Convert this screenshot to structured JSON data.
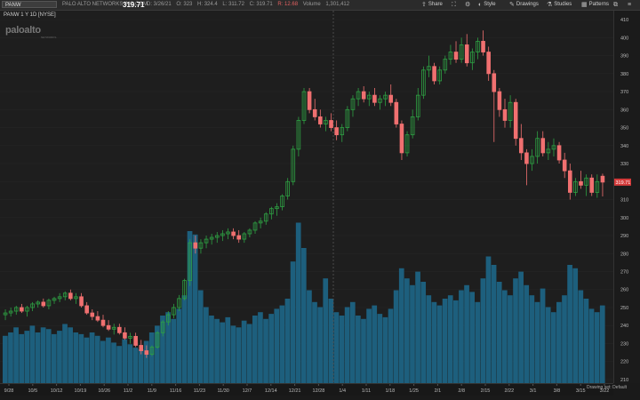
{
  "toolbar": {
    "symbol": "PANW",
    "company": "PALO ALTO NETWORKS INC.COM",
    "date": "D: 3/26/21",
    "open": "O: 323",
    "high": "H: 324.4",
    "low": "L: 311.72",
    "close": "C: 319.71",
    "change": "R: 12.68",
    "volume_label": "Volume",
    "volume": "1,301,412",
    "last_price": "319.71",
    "buttons": [
      "Share",
      "",
      "",
      "Style",
      "Drawings",
      "Studies",
      "Patterns"
    ]
  },
  "chart_title": "PANW 1 Y 1D [NYSE]",
  "logo": {
    "text": "paloalto",
    "sub": "NETWORKS"
  },
  "price_tag": "319.71",
  "footer": "Drawing set: Default",
  "colors": {
    "up": "#2ea043",
    "down": "#f07070",
    "volume": "#1d5f7d",
    "crosshair": "#555555"
  },
  "chart_data": {
    "type": "candlestick",
    "title": "PANW 1 Y 1D [NYSE]",
    "x_ticks": [
      "9/28",
      "10/5",
      "10/12",
      "10/19",
      "10/26",
      "11/2",
      "11/9",
      "11/16",
      "11/23",
      "11/30",
      "12/7",
      "12/14",
      "12/21",
      "12/28",
      "1/4",
      "1/11",
      "1/18",
      "1/25",
      "2/1",
      "2/8",
      "2/15",
      "2/22",
      "3/1",
      "3/8",
      "3/15",
      "3/22"
    ],
    "y_ticks": [
      210,
      220,
      230,
      240,
      250,
      260,
      270,
      280,
      290,
      300,
      310,
      320,
      330,
      340,
      350,
      360,
      370,
      380,
      390,
      400,
      410
    ],
    "ylim": [
      208,
      415
    ],
    "series": [
      {
        "name": "price",
        "values": [
          {
            "o": 246,
            "h": 249,
            "l": 243,
            "c": 247
          },
          {
            "o": 247,
            "h": 250,
            "l": 245,
            "c": 248
          },
          {
            "o": 248,
            "h": 251,
            "l": 246,
            "c": 250
          },
          {
            "o": 250,
            "h": 252,
            "l": 247,
            "c": 248
          },
          {
            "o": 248,
            "h": 251,
            "l": 245,
            "c": 250
          },
          {
            "o": 250,
            "h": 253,
            "l": 248,
            "c": 252
          },
          {
            "o": 252,
            "h": 254,
            "l": 250,
            "c": 253
          },
          {
            "o": 253,
            "h": 255,
            "l": 250,
            "c": 251
          },
          {
            "o": 251,
            "h": 255,
            "l": 249,
            "c": 254
          },
          {
            "o": 254,
            "h": 256,
            "l": 252,
            "c": 255
          },
          {
            "o": 255,
            "h": 258,
            "l": 253,
            "c": 256
          },
          {
            "o": 256,
            "h": 259,
            "l": 254,
            "c": 258
          },
          {
            "o": 258,
            "h": 260,
            "l": 254,
            "c": 255
          },
          {
            "o": 255,
            "h": 258,
            "l": 252,
            "c": 256
          },
          {
            "o": 256,
            "h": 258,
            "l": 250,
            "c": 251
          },
          {
            "o": 251,
            "h": 253,
            "l": 246,
            "c": 247
          },
          {
            "o": 247,
            "h": 249,
            "l": 243,
            "c": 245
          },
          {
            "o": 245,
            "h": 248,
            "l": 242,
            "c": 243
          },
          {
            "o": 243,
            "h": 246,
            "l": 239,
            "c": 240
          },
          {
            "o": 240,
            "h": 243,
            "l": 237,
            "c": 238
          },
          {
            "o": 238,
            "h": 241,
            "l": 235,
            "c": 239
          },
          {
            "o": 239,
            "h": 241,
            "l": 235,
            "c": 236
          },
          {
            "o": 236,
            "h": 239,
            "l": 232,
            "c": 233
          },
          {
            "o": 233,
            "h": 236,
            "l": 230,
            "c": 234
          },
          {
            "o": 234,
            "h": 236,
            "l": 228,
            "c": 229
          },
          {
            "o": 229,
            "h": 232,
            "l": 224,
            "c": 226
          },
          {
            "o": 226,
            "h": 229,
            "l": 222,
            "c": 224
          },
          {
            "o": 224,
            "h": 229,
            "l": 223,
            "c": 228
          },
          {
            "o": 228,
            "h": 237,
            "l": 227,
            "c": 236
          },
          {
            "o": 236,
            "h": 243,
            "l": 234,
            "c": 242
          },
          {
            "o": 242,
            "h": 248,
            "l": 240,
            "c": 246
          },
          {
            "o": 246,
            "h": 252,
            "l": 244,
            "c": 250
          },
          {
            "o": 250,
            "h": 257,
            "l": 248,
            "c": 255
          },
          {
            "o": 255,
            "h": 266,
            "l": 254,
            "c": 265
          },
          {
            "o": 265,
            "h": 288,
            "l": 262,
            "c": 286
          },
          {
            "o": 286,
            "h": 290,
            "l": 280,
            "c": 283
          },
          {
            "o": 283,
            "h": 288,
            "l": 280,
            "c": 286
          },
          {
            "o": 286,
            "h": 290,
            "l": 283,
            "c": 288
          },
          {
            "o": 288,
            "h": 291,
            "l": 285,
            "c": 289
          },
          {
            "o": 289,
            "h": 292,
            "l": 286,
            "c": 290
          },
          {
            "o": 290,
            "h": 293,
            "l": 287,
            "c": 291
          },
          {
            "o": 291,
            "h": 294,
            "l": 288,
            "c": 292
          },
          {
            "o": 292,
            "h": 294,
            "l": 288,
            "c": 290
          },
          {
            "o": 290,
            "h": 293,
            "l": 286,
            "c": 288
          },
          {
            "o": 288,
            "h": 292,
            "l": 286,
            "c": 291
          },
          {
            "o": 291,
            "h": 294,
            "l": 289,
            "c": 293
          },
          {
            "o": 293,
            "h": 298,
            "l": 291,
            "c": 297
          },
          {
            "o": 297,
            "h": 300,
            "l": 294,
            "c": 298
          },
          {
            "o": 298,
            "h": 303,
            "l": 296,
            "c": 302
          },
          {
            "o": 302,
            "h": 306,
            "l": 299,
            "c": 305
          },
          {
            "o": 305,
            "h": 308,
            "l": 301,
            "c": 306
          },
          {
            "o": 306,
            "h": 313,
            "l": 304,
            "c": 312
          },
          {
            "o": 312,
            "h": 322,
            "l": 310,
            "c": 320
          },
          {
            "o": 320,
            "h": 340,
            "l": 318,
            "c": 338
          },
          {
            "o": 338,
            "h": 356,
            "l": 334,
            "c": 354
          },
          {
            "o": 354,
            "h": 372,
            "l": 352,
            "c": 370
          },
          {
            "o": 370,
            "h": 372,
            "l": 358,
            "c": 360
          },
          {
            "o": 360,
            "h": 366,
            "l": 354,
            "c": 356
          },
          {
            "o": 356,
            "h": 360,
            "l": 350,
            "c": 352
          },
          {
            "o": 352,
            "h": 356,
            "l": 348,
            "c": 354
          },
          {
            "o": 354,
            "h": 358,
            "l": 348,
            "c": 350
          },
          {
            "o": 350,
            "h": 354,
            "l": 343,
            "c": 346
          },
          {
            "o": 346,
            "h": 352,
            "l": 342,
            "c": 350
          },
          {
            "o": 350,
            "h": 362,
            "l": 348,
            "c": 360
          },
          {
            "o": 360,
            "h": 368,
            "l": 356,
            "c": 366
          },
          {
            "o": 366,
            "h": 372,
            "l": 362,
            "c": 370
          },
          {
            "o": 370,
            "h": 373,
            "l": 364,
            "c": 366
          },
          {
            "o": 366,
            "h": 370,
            "l": 362,
            "c": 368
          },
          {
            "o": 368,
            "h": 372,
            "l": 362,
            "c": 364
          },
          {
            "o": 364,
            "h": 368,
            "l": 360,
            "c": 366
          },
          {
            "o": 366,
            "h": 370,
            "l": 362,
            "c": 368
          },
          {
            "o": 368,
            "h": 374,
            "l": 362,
            "c": 364
          },
          {
            "o": 364,
            "h": 366,
            "l": 350,
            "c": 352
          },
          {
            "o": 352,
            "h": 354,
            "l": 332,
            "c": 336
          },
          {
            "o": 336,
            "h": 348,
            "l": 334,
            "c": 346
          },
          {
            "o": 346,
            "h": 360,
            "l": 344,
            "c": 356
          },
          {
            "o": 356,
            "h": 372,
            "l": 354,
            "c": 368
          },
          {
            "o": 368,
            "h": 384,
            "l": 366,
            "c": 382
          },
          {
            "o": 382,
            "h": 390,
            "l": 378,
            "c": 384
          },
          {
            "o": 384,
            "h": 386,
            "l": 374,
            "c": 376
          },
          {
            "o": 376,
            "h": 384,
            "l": 374,
            "c": 382
          },
          {
            "o": 382,
            "h": 390,
            "l": 380,
            "c": 388
          },
          {
            "o": 388,
            "h": 396,
            "l": 385,
            "c": 392
          },
          {
            "o": 392,
            "h": 398,
            "l": 386,
            "c": 388
          },
          {
            "o": 388,
            "h": 400,
            "l": 386,
            "c": 396
          },
          {
            "o": 396,
            "h": 402,
            "l": 384,
            "c": 386
          },
          {
            "o": 386,
            "h": 394,
            "l": 382,
            "c": 392
          },
          {
            "o": 392,
            "h": 400,
            "l": 388,
            "c": 398
          },
          {
            "o": 398,
            "h": 404,
            "l": 390,
            "c": 392
          },
          {
            "o": 392,
            "h": 395,
            "l": 376,
            "c": 380
          },
          {
            "o": 380,
            "h": 382,
            "l": 342,
            "c": 370
          },
          {
            "o": 370,
            "h": 372,
            "l": 356,
            "c": 360
          },
          {
            "o": 360,
            "h": 366,
            "l": 350,
            "c": 354
          },
          {
            "o": 354,
            "h": 368,
            "l": 350,
            "c": 364
          },
          {
            "o": 364,
            "h": 366,
            "l": 340,
            "c": 344
          },
          {
            "o": 344,
            "h": 352,
            "l": 332,
            "c": 336
          },
          {
            "o": 336,
            "h": 338,
            "l": 318,
            "c": 330
          },
          {
            "o": 330,
            "h": 338,
            "l": 326,
            "c": 334
          },
          {
            "o": 334,
            "h": 348,
            "l": 330,
            "c": 344
          },
          {
            "o": 344,
            "h": 348,
            "l": 334,
            "c": 336
          },
          {
            "o": 336,
            "h": 342,
            "l": 332,
            "c": 338
          },
          {
            "o": 338,
            "h": 344,
            "l": 334,
            "c": 340
          },
          {
            "o": 340,
            "h": 342,
            "l": 330,
            "c": 332
          },
          {
            "o": 332,
            "h": 336,
            "l": 322,
            "c": 326
          },
          {
            "o": 326,
            "h": 330,
            "l": 310,
            "c": 314
          },
          {
            "o": 314,
            "h": 322,
            "l": 312,
            "c": 320
          },
          {
            "o": 320,
            "h": 326,
            "l": 316,
            "c": 318
          },
          {
            "o": 318,
            "h": 324,
            "l": 312,
            "c": 322
          },
          {
            "o": 322,
            "h": 324,
            "l": 312,
            "c": 314
          },
          {
            "o": 314,
            "h": 324,
            "l": 311,
            "c": 320
          },
          {
            "o": 323,
            "h": 324.4,
            "l": 311.72,
            "c": 319.71
          }
        ]
      },
      {
        "name": "Volume",
        "values": [
          0.28,
          0.3,
          0.33,
          0.29,
          0.31,
          0.34,
          0.3,
          0.33,
          0.32,
          0.29,
          0.31,
          0.35,
          0.33,
          0.3,
          0.29,
          0.27,
          0.3,
          0.28,
          0.25,
          0.27,
          0.24,
          0.22,
          0.26,
          0.23,
          0.21,
          0.2,
          0.25,
          0.3,
          0.34,
          0.4,
          0.42,
          0.38,
          0.44,
          0.52,
          0.9,
          0.88,
          0.55,
          0.45,
          0.4,
          0.38,
          0.36,
          0.39,
          0.34,
          0.33,
          0.37,
          0.35,
          0.4,
          0.42,
          0.38,
          0.41,
          0.44,
          0.46,
          0.5,
          0.72,
          0.95,
          0.8,
          0.55,
          0.48,
          0.45,
          0.62,
          0.5,
          0.42,
          0.4,
          0.45,
          0.48,
          0.4,
          0.38,
          0.44,
          0.46,
          0.41,
          0.39,
          0.44,
          0.55,
          0.68,
          0.62,
          0.58,
          0.66,
          0.6,
          0.52,
          0.48,
          0.46,
          0.5,
          0.52,
          0.49,
          0.55,
          0.58,
          0.54,
          0.48,
          0.62,
          0.75,
          0.7,
          0.6,
          0.55,
          0.52,
          0.62,
          0.66,
          0.58,
          0.52,
          0.48,
          0.56,
          0.45,
          0.42,
          0.48,
          0.52,
          0.7,
          0.68,
          0.55,
          0.5,
          0.44,
          0.42,
          0.46
        ]
      }
    ]
  }
}
